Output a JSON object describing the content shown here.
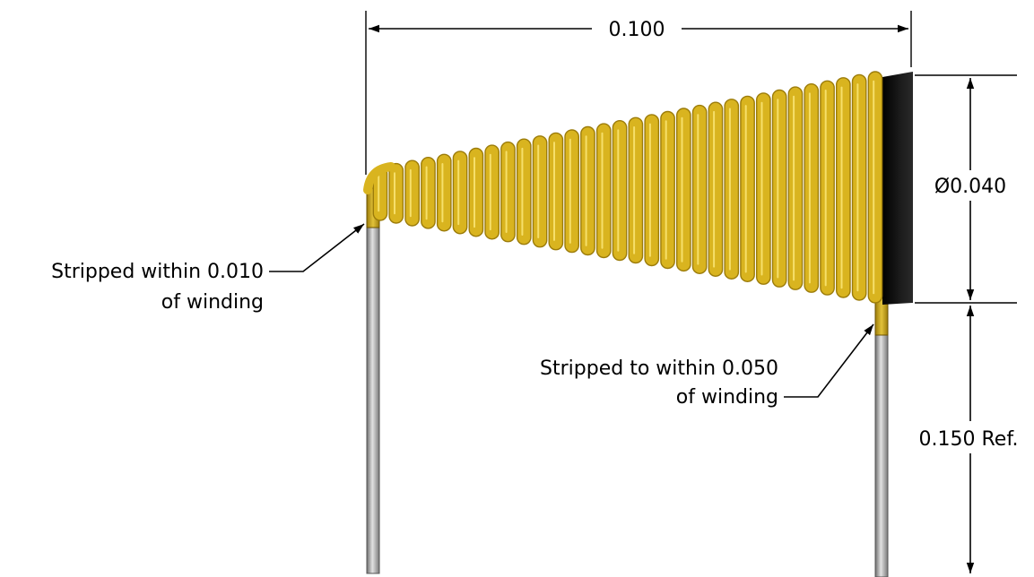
{
  "dimensions": {
    "overall_length": "0.100",
    "diameter": "Ø0.040",
    "lead_length": "0.150 Ref."
  },
  "notes": {
    "left_lead": {
      "line1": "Stripped within 0.010",
      "line2": "of winding"
    },
    "right_lead": {
      "line1": "Stripped to within 0.050",
      "line2": "of winding"
    }
  },
  "coil": {
    "turns": 32
  },
  "colors": {
    "wire_gold": "#d9b41f",
    "wire_gold_dark": "#9c7c0a",
    "wire_highlight": "#f6df6a",
    "core_black": "#111111",
    "lead_gray": "#b9b9b9",
    "lead_gray_dark": "#6e6e6e"
  }
}
